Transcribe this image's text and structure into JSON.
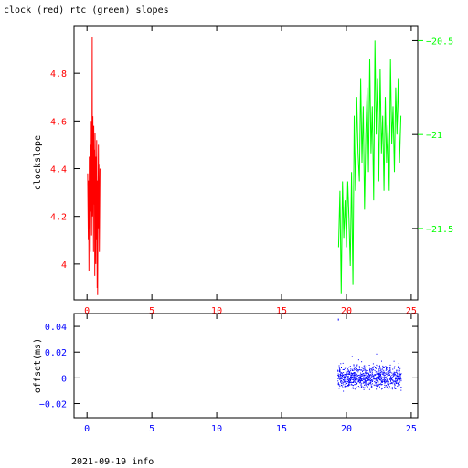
{
  "title": "clock (red) rtc (green) slopes",
  "footer": "2021-09-19 info",
  "chart_data": [
    {
      "type": "line",
      "ylabel": "clockslope",
      "xlim": [
        -1,
        25.5
      ],
      "xticks": [
        0,
        5,
        10,
        15,
        20,
        25
      ],
      "grid": false,
      "left_axis": {
        "color": "#ff0000",
        "ylim": [
          3.85,
          5.0
        ],
        "yticks": [
          4,
          4.2,
          4.4,
          4.6,
          4.8
        ]
      },
      "right_axis": {
        "color": "#00ff00",
        "ylim": [
          -21.88,
          -20.42
        ],
        "yticks": [
          -20.5,
          -21,
          -21.5
        ]
      },
      "series": [
        {
          "axis": "left",
          "color": "#ff0000",
          "x": [
            0.05,
            0.1,
            0.12,
            0.15,
            0.18,
            0.2,
            0.22,
            0.25,
            0.28,
            0.3,
            0.33,
            0.35,
            0.38,
            0.4,
            0.42,
            0.45,
            0.48,
            0.5,
            0.52,
            0.55,
            0.58,
            0.6,
            0.62,
            0.65,
            0.68,
            0.7,
            0.72,
            0.75,
            0.78,
            0.8,
            0.82,
            0.85,
            0.88,
            0.9,
            0.92,
            0.95,
            1.0
          ],
          "y": [
            4.38,
            4.1,
            4.35,
            3.97,
            4.45,
            4.15,
            4.3,
            4.05,
            4.5,
            4.22,
            4.6,
            4.12,
            4.4,
            4.95,
            4.2,
            4.62,
            4.35,
            4.05,
            4.58,
            4.25,
            4.48,
            3.95,
            4.55,
            4.3,
            4.0,
            4.45,
            4.1,
            4.52,
            3.9,
            4.35,
            3.87,
            4.2,
            4.5,
            4.15,
            4.42,
            4.05,
            4.4
          ]
        },
        {
          "axis": "right",
          "color": "#00ff00",
          "x": [
            19.4,
            19.5,
            19.6,
            19.7,
            19.8,
            19.9,
            20.0,
            20.1,
            20.2,
            20.3,
            20.4,
            20.5,
            20.6,
            20.7,
            20.8,
            20.9,
            21.0,
            21.1,
            21.2,
            21.3,
            21.4,
            21.5,
            21.6,
            21.7,
            21.8,
            21.9,
            22.0,
            22.1,
            22.2,
            22.3,
            22.4,
            22.5,
            22.6,
            22.7,
            22.8,
            22.9,
            23.0,
            23.1,
            23.2,
            23.3,
            23.4,
            23.5,
            23.6,
            23.7,
            23.8,
            23.9,
            24.0,
            24.1,
            24.2
          ],
          "y": [
            -21.6,
            -21.3,
            -21.85,
            -21.25,
            -21.55,
            -21.35,
            -21.6,
            -21.25,
            -21.45,
            -21.7,
            -21.2,
            -21.8,
            -20.9,
            -21.3,
            -20.8,
            -21.1,
            -21.25,
            -20.7,
            -21.15,
            -20.85,
            -21.4,
            -21.0,
            -20.75,
            -21.2,
            -20.6,
            -21.1,
            -20.85,
            -21.35,
            -20.5,
            -21.0,
            -20.7,
            -21.25,
            -20.65,
            -21.1,
            -20.9,
            -21.3,
            -20.8,
            -21.15,
            -20.95,
            -21.3,
            -20.6,
            -21.05,
            -20.85,
            -21.2,
            -20.75,
            -21.0,
            -20.7,
            -21.15,
            -20.9
          ]
        }
      ]
    },
    {
      "type": "scatter",
      "ylabel": "offset(ms)",
      "xlim": [
        -1,
        25.5
      ],
      "ylim": [
        -0.031,
        0.05
      ],
      "xticks": [
        0,
        5,
        10,
        15,
        20,
        25
      ],
      "yticks": [
        0.04,
        0.02,
        0,
        -0.02
      ],
      "grid": false,
      "color": "#0000ff",
      "series": [
        {
          "color": "#0000ff",
          "x_range": [
            19.3,
            24.2
          ],
          "center": 0.0005,
          "spread": 0.009,
          "spike_x": 19.35,
          "spike_y": 0.046
        }
      ]
    }
  ]
}
